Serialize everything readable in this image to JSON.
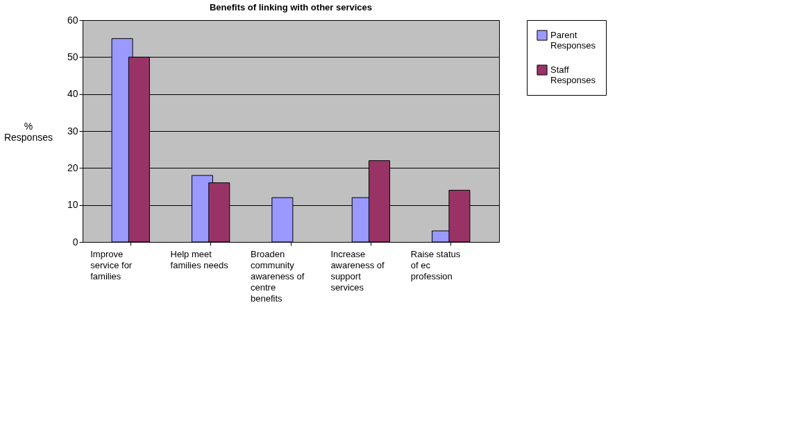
{
  "chart_data": {
    "type": "bar",
    "title": "Benefits of linking with other services",
    "ylabel": "% Responses",
    "categories": [
      "Improve service for families",
      "Help meet families needs",
      "Broaden community awareness of centre benefits",
      "Increase awareness of support services",
      "Raise status of ec profession"
    ],
    "series": [
      {
        "name": "Parent Responses",
        "color": "#9999ff",
        "values": [
          55,
          18,
          12,
          12,
          3
        ]
      },
      {
        "name": "Staff Responses",
        "color": "#993366",
        "values": [
          50,
          16,
          null,
          22,
          14
        ]
      }
    ],
    "ylim": [
      0,
      60
    ],
    "yticks": [
      0,
      10,
      20,
      30,
      40,
      50,
      60
    ],
    "grid": "y",
    "legend": "right"
  }
}
